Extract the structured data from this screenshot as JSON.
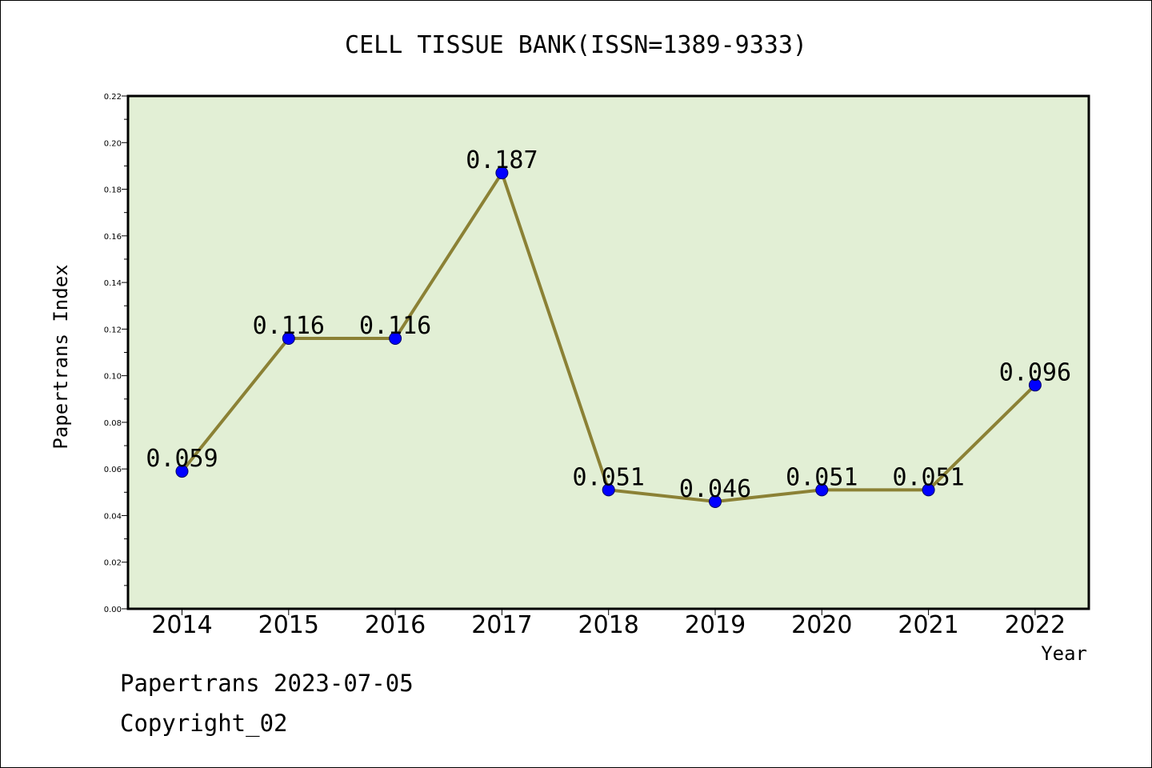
{
  "chart_data": {
    "type": "line",
    "title": "CELL TISSUE BANK(ISSN=1389-9333)",
    "xlabel": "Year",
    "ylabel": "Papertrans Index",
    "categories": [
      "2014",
      "2015",
      "2016",
      "2017",
      "2018",
      "2019",
      "2020",
      "2021",
      "2022"
    ],
    "series": [
      {
        "values": [
          0.059,
          0.116,
          0.116,
          0.187,
          0.051,
          0.046,
          0.051,
          0.051,
          0.096
        ],
        "labels": [
          "0.059",
          "0.116",
          "0.116",
          "0.187",
          "0.051",
          "0.046",
          "0.051",
          "0.051",
          "0.096"
        ]
      }
    ],
    "ylim": [
      0,
      0.22
    ],
    "yticks": [
      "0.00",
      "0.02",
      "0.04",
      "0.06",
      "0.08",
      "0.10",
      "0.12",
      "0.14",
      "0.16",
      "0.18",
      "0.20",
      "0.22"
    ],
    "grid": false,
    "plot_background": "#e2efd5",
    "line_color": "#8b8135",
    "marker_color": "#0000ff"
  },
  "footer": {
    "line1": "Papertrans 2023-07-05",
    "line2": "Copyright_02"
  }
}
